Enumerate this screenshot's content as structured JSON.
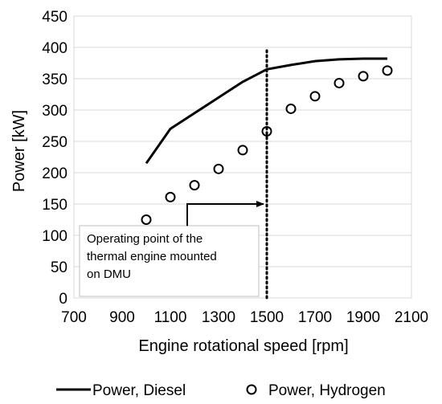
{
  "chart_data": {
    "type": "line",
    "xlabel": "Engine rotational speed [rpm]",
    "ylabel": "Power  [kW]",
    "xlim": [
      700,
      2100
    ],
    "ylim": [
      0,
      450
    ],
    "x_ticks": [
      700,
      900,
      1100,
      1300,
      1500,
      1700,
      1900,
      2100
    ],
    "y_ticks": [
      0,
      50,
      100,
      150,
      200,
      250,
      300,
      350,
      400,
      450
    ],
    "grid": "horizontal",
    "legend_position": "bottom",
    "series": [
      {
        "name": "Power, Diesel",
        "style": "line",
        "color": "#000000",
        "x": [
          1000,
          1100,
          1200,
          1300,
          1400,
          1500,
          1600,
          1700,
          1800,
          1900,
          2000
        ],
        "y": [
          215,
          270,
          295,
          320,
          345,
          365,
          372,
          378,
          381,
          382,
          382
        ]
      },
      {
        "name": "Power, Hydrogen",
        "style": "open-circle",
        "color": "#000000",
        "x": [
          1000,
          1100,
          1200,
          1300,
          1400,
          1500,
          1600,
          1700,
          1800,
          1900,
          2000
        ],
        "y": [
          125,
          161,
          180,
          206,
          236,
          266,
          302,
          322,
          343,
          354,
          363
        ]
      }
    ],
    "vertical_marker": {
      "x": 1500,
      "style": "dotted"
    },
    "annotation": {
      "lines": [
        "Operating point of the",
        "thermal engine mounted",
        "on DMU"
      ],
      "arrow_from": {
        "x": 1170,
        "y": 115
      },
      "arrow_corner": {
        "x": 1170,
        "y": 150
      },
      "arrow_to": {
        "x": 1500,
        "y": 150
      }
    }
  }
}
